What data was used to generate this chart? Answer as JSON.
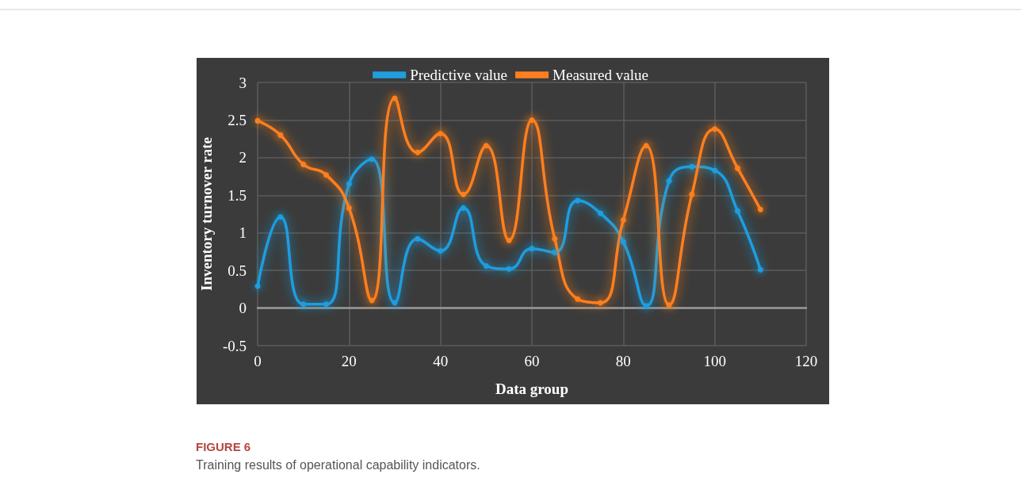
{
  "chart_data": {
    "type": "line",
    "xlabel": "Data group",
    "ylabel": "Inventory turnover rate",
    "annotations": [
      "FIGURE 6",
      "Training results of operational capability indicators."
    ],
    "x": [
      0,
      5,
      10,
      15,
      20,
      25,
      30,
      35,
      40,
      45,
      50,
      55,
      60,
      65,
      70,
      75,
      80,
      85,
      90,
      95,
      100,
      105,
      110
    ],
    "series": [
      {
        "name": "Predictive value",
        "color": "#1f9ee0",
        "values": [
          0.29,
          1.21,
          0.05,
          0.05,
          1.65,
          1.98,
          0.07,
          0.92,
          0.76,
          1.33,
          0.56,
          0.52,
          0.79,
          0.74,
          1.43,
          1.26,
          0.88,
          0.03,
          1.69,
          1.88,
          1.83,
          1.29,
          0.51
        ]
      },
      {
        "name": "Measured value",
        "color": "#ff7f1e",
        "values": [
          2.49,
          2.3,
          1.91,
          1.77,
          1.33,
          0.1,
          2.79,
          2.07,
          2.32,
          1.51,
          2.16,
          0.9,
          2.5,
          0.92,
          0.12,
          0.07,
          1.17,
          2.16,
          0.04,
          1.51,
          2.38,
          1.86,
          1.31
        ]
      }
    ],
    "xlim": [
      0,
      120
    ],
    "xticks": [
      0,
      20,
      40,
      60,
      80,
      100,
      120
    ],
    "ylim": [
      -0.5,
      3
    ],
    "yticks": [
      -0.5,
      0,
      0.5,
      1,
      1.5,
      2,
      2.5,
      3
    ],
    "grid": true,
    "legend": "top",
    "marker": "circle",
    "line_style": "solid"
  }
}
